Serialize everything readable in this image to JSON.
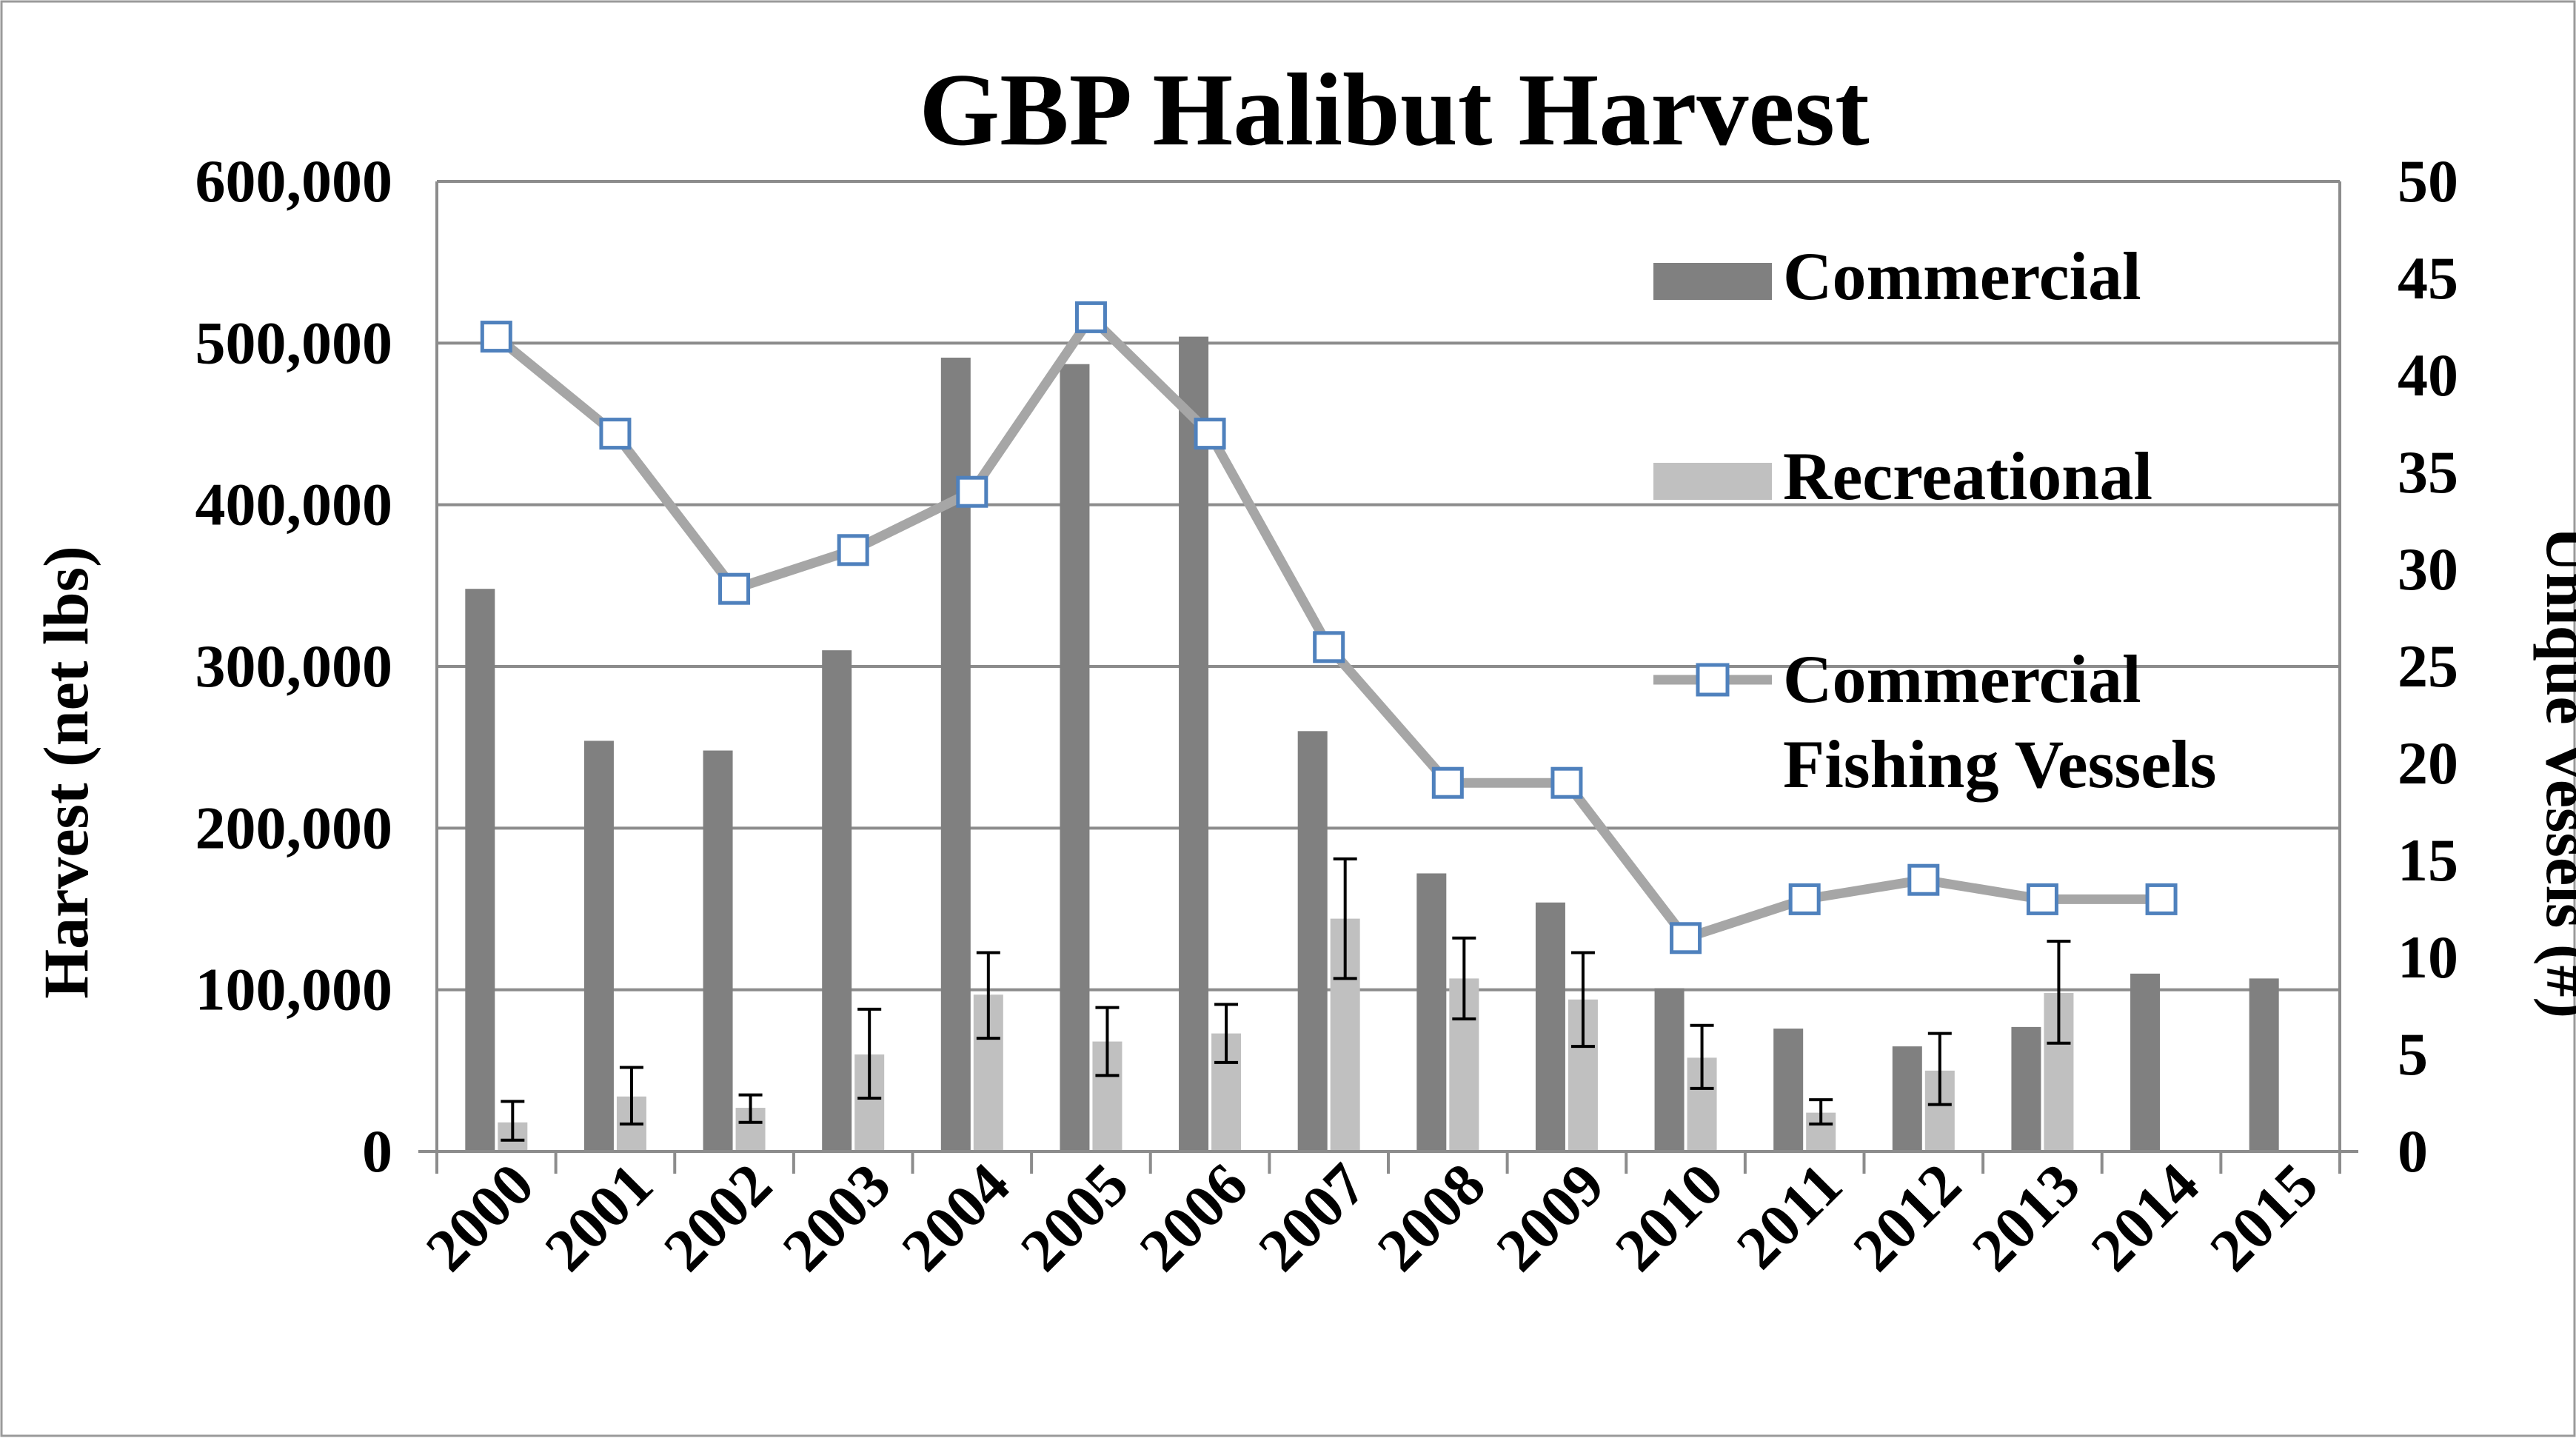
{
  "chart_data": {
    "type": "bar",
    "title": "GBP Halibut Harvest",
    "ylabel": "Harvest (net lbs)",
    "y2label": "Unique Vessels (#)",
    "xlabel": "",
    "ylim": [
      0,
      600000
    ],
    "y2lim": [
      0,
      50
    ],
    "yticks": [
      0,
      100000,
      200000,
      300000,
      400000,
      500000,
      600000
    ],
    "ytick_labels": [
      "0",
      "100,000",
      "200,000",
      "300,000",
      "400,000",
      "500,000",
      "600,000"
    ],
    "y2ticks": [
      0,
      5,
      10,
      15,
      20,
      25,
      30,
      35,
      40,
      45,
      50
    ],
    "y2tick_labels": [
      "0",
      "5",
      "10",
      "15",
      "20",
      "25",
      "30",
      "35",
      "40",
      "45",
      "50"
    ],
    "grid": "horizontal",
    "legend_position": "top-right",
    "categories": [
      "2000",
      "2001",
      "2002",
      "2003",
      "2004",
      "2005",
      "2006",
      "2007",
      "2008",
      "2009",
      "2010",
      "2011",
      "2012",
      "2013",
      "2014",
      "2015"
    ],
    "series": [
      {
        "name": "Commercial",
        "kind": "bar",
        "axis": "left",
        "color": "#808080",
        "values": [
          348000,
          254000,
          248000,
          310000,
          491000,
          487000,
          504000,
          260000,
          172000,
          154000,
          101000,
          76000,
          65000,
          77000,
          110000,
          107000
        ]
      },
      {
        "name": "Recreational",
        "kind": "bar",
        "axis": "left",
        "color": "#c0c0c0",
        "values": [
          18000,
          34000,
          27000,
          60000,
          97000,
          68000,
          73000,
          144000,
          107000,
          94000,
          58000,
          24000,
          50000,
          98000,
          null,
          null
        ],
        "error": [
          [
            7000,
            31000
          ],
          [
            17000,
            52000
          ],
          [
            18000,
            35000
          ],
          [
            33000,
            88000
          ],
          [
            70000,
            123000
          ],
          [
            47000,
            89000
          ],
          [
            55000,
            91000
          ],
          [
            107000,
            181000
          ],
          [
            82000,
            132000
          ],
          [
            65000,
            123000
          ],
          [
            39000,
            78000
          ],
          [
            17000,
            32000
          ],
          [
            29000,
            73000
          ],
          [
            67000,
            130000
          ],
          null,
          null
        ]
      },
      {
        "name": "Commercial Fishing Vessels",
        "legend_lines": [
          "Commercial",
          "Fishing Vessels"
        ],
        "kind": "line",
        "axis": "right",
        "color": "#a6a6a6",
        "marker_color": "#4f81bd",
        "values": [
          42,
          37,
          29,
          31,
          34,
          43,
          37,
          26,
          19,
          19,
          11,
          13,
          14,
          13,
          13,
          null
        ]
      }
    ]
  }
}
